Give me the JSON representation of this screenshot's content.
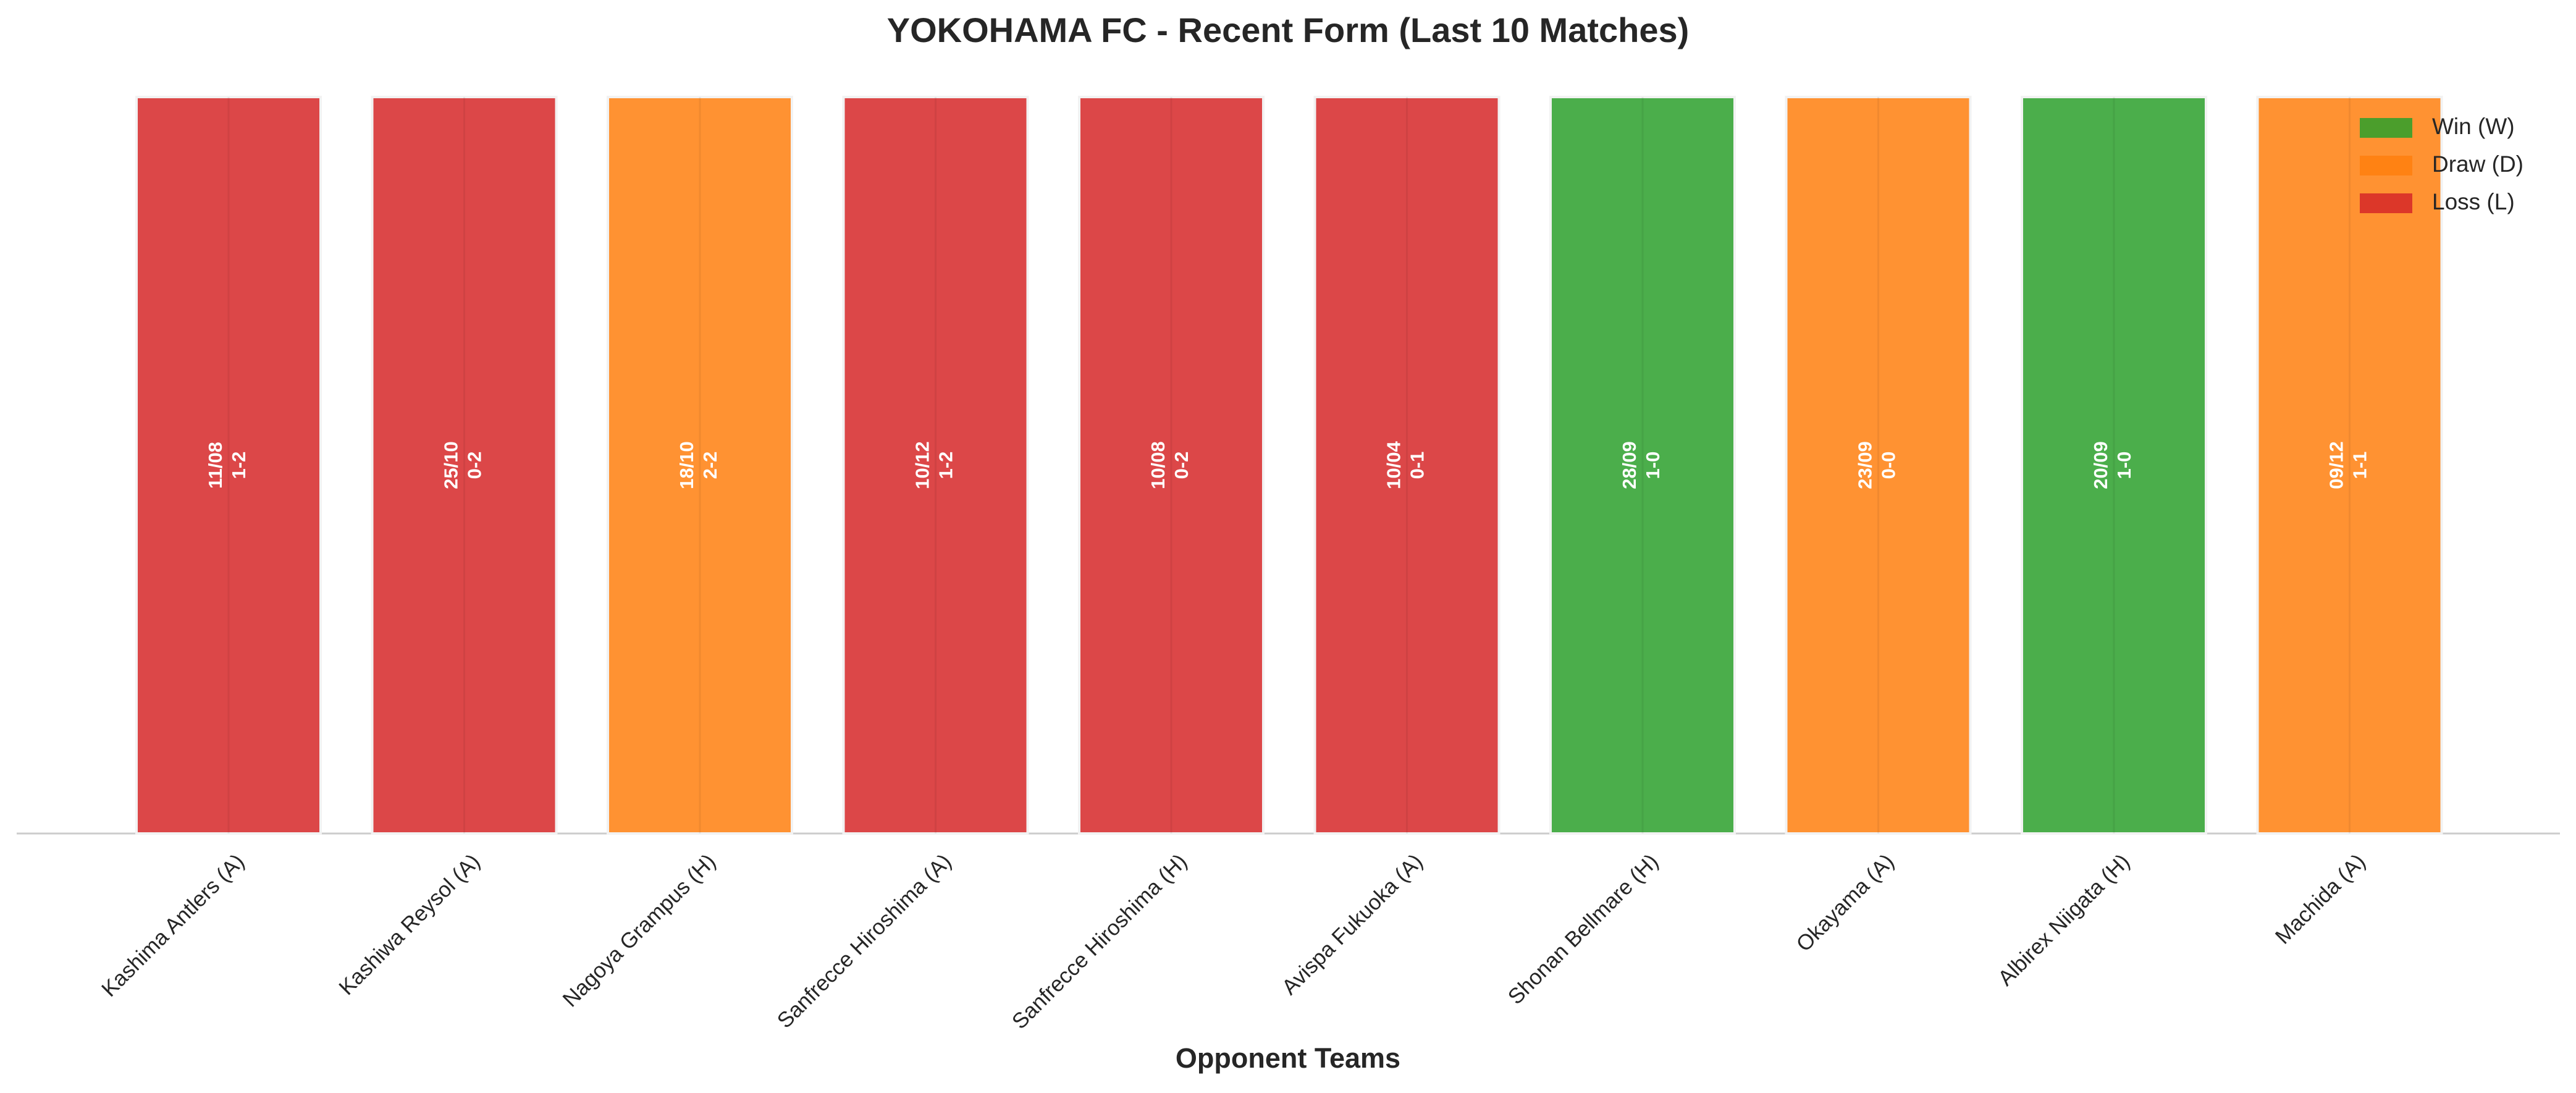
{
  "chart_data": {
    "type": "bar",
    "title": "YOKOHAMA FC - Recent Form (Last 10 Matches)",
    "xlabel": "Opponent Teams",
    "categories": [
      "Kashima Antlers (A)",
      "Kashiwa Reysol (A)",
      "Nagoya Grampus (H)",
      "Sanfrecce Hiroshima (A)",
      "Sanfrecce Hiroshima (H)",
      "Avispa Fukuoka (A)",
      "Shonan Bellmare (H)",
      "Okayama (A)",
      "Albirex Niigata (H)",
      "Machida (A)"
    ],
    "values": [
      1,
      1,
      1,
      1,
      1,
      1,
      1,
      1,
      1,
      1
    ],
    "ylim": [
      0,
      1
    ],
    "colors": [
      "#d62728",
      "#d62728",
      "#ff7f0e",
      "#d62728",
      "#d62728",
      "#d62728",
      "#2ca02c",
      "#ff7f0e",
      "#2ca02c",
      "#ff7f0e"
    ],
    "dates": [
      "11/08",
      "25/10",
      "18/10",
      "10/12",
      "10/08",
      "10/04",
      "28/09",
      "23/09",
      "20/09",
      "09/12"
    ],
    "scores": [
      "1-2",
      "0-2",
      "2-2",
      "1-2",
      "0-2",
      "0-1",
      "1-0",
      "0-0",
      "1-0",
      "1-1"
    ],
    "legend": {
      "position": "upper right",
      "entries": [
        {
          "name": "Win (W)",
          "color": "#2ca02c"
        },
        {
          "name": "Draw (D)",
          "color": "#ff7f0e"
        },
        {
          "name": "Loss (L)",
          "color": "#d62728"
        }
      ]
    }
  }
}
